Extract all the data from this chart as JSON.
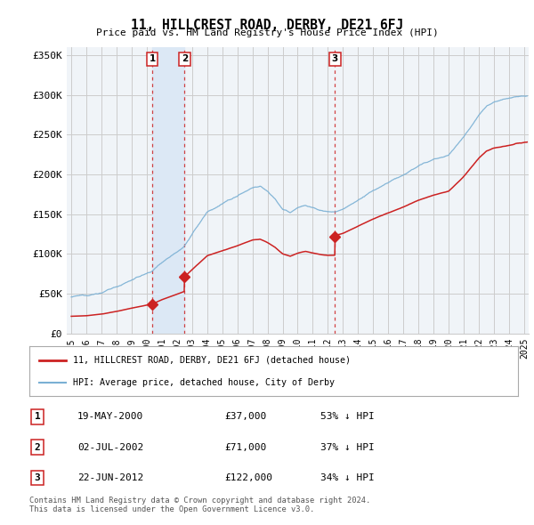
{
  "title": "11, HILLCREST ROAD, DERBY, DE21 6FJ",
  "subtitle": "Price paid vs. HM Land Registry's House Price Index (HPI)",
  "hpi_color": "#7ab0d4",
  "price_color": "#cc2222",
  "vline_color": "#cc2222",
  "grid_color": "#cccccc",
  "bg_color": "#ffffff",
  "plot_bg_color": "#f0f4f8",
  "shade_color": "#dce8f5",
  "ylim": [
    0,
    360000
  ],
  "yticks": [
    0,
    50000,
    100000,
    150000,
    200000,
    250000,
    300000,
    350000
  ],
  "ytick_labels": [
    "£0",
    "£50K",
    "£100K",
    "£150K",
    "£200K",
    "£250K",
    "£300K",
    "£350K"
  ],
  "xlim_start": 1994.7,
  "xlim_end": 2025.3,
  "transactions": [
    {
      "label": "1",
      "date_x": 2000.37,
      "price": 37000,
      "date_str": "19-MAY-2000",
      "amount": "£37,000",
      "pct": "53% ↓ HPI"
    },
    {
      "label": "2",
      "date_x": 2002.5,
      "price": 71000,
      "date_str": "02-JUL-2002",
      "amount": "£71,000",
      "pct": "37% ↓ HPI"
    },
    {
      "label": "3",
      "date_x": 2012.47,
      "price": 122000,
      "date_str": "22-JUN-2012",
      "amount": "£122,000",
      "pct": "34% ↓ HPI"
    }
  ],
  "legend_line1": "11, HILLCREST ROAD, DERBY, DE21 6FJ (detached house)",
  "legend_line2": "HPI: Average price, detached house, City of Derby",
  "footer": "Contains HM Land Registry data © Crown copyright and database right 2024.\nThis data is licensed under the Open Government Licence v3.0."
}
